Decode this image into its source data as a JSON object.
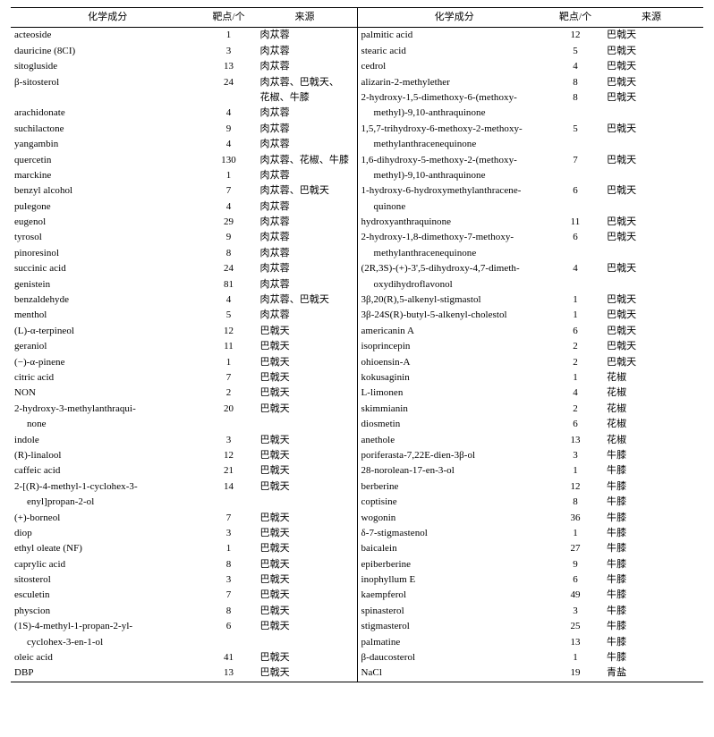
{
  "headers": {
    "compound": "化学成分",
    "targets": "靶点/个",
    "source": "来源"
  },
  "columns_left": [
    {
      "c": "acteoside",
      "t": "1",
      "s": "肉苁蓉"
    },
    {
      "c": "dauricine (8CI)",
      "t": "3",
      "s": "肉苁蓉"
    },
    {
      "c": "sitogluside",
      "t": "13",
      "s": "肉苁蓉"
    },
    {
      "c": "β-sitosterol",
      "t": "24",
      "s": "肉苁蓉、巴戟天、花椒、牛膝",
      "wrap": true
    },
    {
      "c": "arachidonate",
      "t": "4",
      "s": "肉苁蓉"
    },
    {
      "c": "suchilactone",
      "t": "9",
      "s": "肉苁蓉"
    },
    {
      "c": "yangambin",
      "t": "4",
      "s": "肉苁蓉"
    },
    {
      "c": "quercetin",
      "t": "130",
      "s": "肉苁蓉、花椒、牛膝"
    },
    {
      "c": "marckine",
      "t": "1",
      "s": "肉苁蓉"
    },
    {
      "c": "benzyl alcohol",
      "t": "7",
      "s": "肉苁蓉、巴戟天"
    },
    {
      "c": "pulegone",
      "t": "4",
      "s": "肉苁蓉"
    },
    {
      "c": "eugenol",
      "t": "29",
      "s": "肉苁蓉"
    },
    {
      "c": "tyrosol",
      "t": "9",
      "s": "肉苁蓉"
    },
    {
      "c": "pinoresinol",
      "t": "8",
      "s": "肉苁蓉"
    },
    {
      "c": "succinic acid",
      "t": "24",
      "s": "肉苁蓉"
    },
    {
      "c": "genistein",
      "t": "81",
      "s": "肉苁蓉"
    },
    {
      "c": "benzaldehyde",
      "t": "4",
      "s": "肉苁蓉、巴戟天"
    },
    {
      "c": "menthol",
      "t": "5",
      "s": "肉苁蓉"
    },
    {
      "c": "(L)-α-terpineol",
      "t": "12",
      "s": "巴戟天"
    },
    {
      "c": "geraniol",
      "t": "11",
      "s": "巴戟天"
    },
    {
      "c": "(−)-α-pinene",
      "t": "1",
      "s": "巴戟天"
    },
    {
      "c": "citric acid",
      "t": "7",
      "s": "巴戟天"
    },
    {
      "c": "NON",
      "t": "2",
      "s": "巴戟天"
    },
    {
      "c": "2-hydroxy-3-methylanthraquinone",
      "t": "20",
      "s": "巴戟天",
      "cwrap": [
        "2-hydroxy-3-methylanthraqui-",
        "none"
      ]
    },
    {
      "c": "indole",
      "t": "3",
      "s": "巴戟天"
    },
    {
      "c": "(R)-linalool",
      "t": "12",
      "s": "巴戟天"
    },
    {
      "c": "caffeic acid",
      "t": "21",
      "s": "巴戟天"
    },
    {
      "c": "2-[(R)-4-methyl-1-cyclohex-3-enyl]propan-2-ol",
      "t": "14",
      "s": "巴戟天",
      "cwrap": [
        "2-[(R)-4-methyl-1-cyclohex-3-",
        "enyl]propan-2-ol"
      ]
    },
    {
      "c": "(+)-borneol",
      "t": "7",
      "s": "巴戟天"
    },
    {
      "c": "diop",
      "t": "3",
      "s": "巴戟天"
    },
    {
      "c": "ethyl oleate (NF)",
      "t": "1",
      "s": "巴戟天"
    },
    {
      "c": "caprylic acid",
      "t": "8",
      "s": "巴戟天"
    },
    {
      "c": "sitosterol",
      "t": "3",
      "s": "巴戟天"
    },
    {
      "c": "esculetin",
      "t": "7",
      "s": "巴戟天"
    },
    {
      "c": "physcion",
      "t": "8",
      "s": "巴戟天"
    },
    {
      "c": "(1S)-4-methyl-1-propan-2-yl-cyclohex-3-en-1-ol",
      "t": "6",
      "s": "巴戟天",
      "cwrap": [
        "(1S)-4-methyl-1-propan-2-yl-",
        "cyclohex-3-en-1-ol"
      ]
    },
    {
      "c": "oleic acid",
      "t": "41",
      "s": "巴戟天"
    },
    {
      "c": "DBP",
      "t": "13",
      "s": "巴戟天"
    }
  ],
  "columns_right": [
    {
      "c": "palmitic acid",
      "t": "12",
      "s": "巴戟天"
    },
    {
      "c": "stearic acid",
      "t": "5",
      "s": "巴戟天"
    },
    {
      "c": "cedrol",
      "t": "4",
      "s": "巴戟天"
    },
    {
      "c": "alizarin-2-methylether",
      "t": "8",
      "s": "巴戟天"
    },
    {
      "c": "2-hydroxy-1,5-dimethoxy-6-(methoxymethyl)-9,10-anthraquinone",
      "t": "8",
      "s": "巴戟天",
      "cwrap": [
        "2-hydroxy-1,5-dimethoxy-6-(methoxy-",
        "methyl)-9,10-anthraquinone"
      ]
    },
    {
      "c": "1,5,7-trihydroxy-6-methoxy-2-methoxymethylanthracenequinone",
      "t": "5",
      "s": "巴戟天",
      "cwrap": [
        "1,5,7-trihydroxy-6-methoxy-2-methoxy-",
        "methylanthracenequinone"
      ]
    },
    {
      "c": "1,6-dihydroxy-5-methoxy-2-(methoxymethyl)-9,10-anthraquinone",
      "t": "7",
      "s": "巴戟天",
      "cwrap": [
        "1,6-dihydroxy-5-methoxy-2-(methoxy-",
        "methyl)-9,10-anthraquinone"
      ]
    },
    {
      "c": "1-hydroxy-6-hydroxymethylanthracenequinone",
      "t": "6",
      "s": "巴戟天",
      "cwrap": [
        "1-hydroxy-6-hydroxymethylanthracene-",
        "quinone"
      ]
    },
    {
      "c": "hydroxyanthraquinone",
      "t": "11",
      "s": "巴戟天"
    },
    {
      "c": "2-hydroxy-1,8-dimethoxy-7-methoxymethylanthracenequinone",
      "t": "6",
      "s": "巴戟天",
      "cwrap": [
        "2-hydroxy-1,8-dimethoxy-7-methoxy-",
        "methylanthracenequinone"
      ]
    },
    {
      "c": "(2R,3S)-(+)-3',5-dihydroxy-4,7-dimethoxydihydroflavonol",
      "t": "4",
      "s": "巴戟天",
      "cwrap": [
        "(2R,3S)-(+)-3',5-dihydroxy-4,7-dimeth-",
        "oxydihydroflavonol"
      ]
    },
    {
      "c": "3β,20(R),5-alkenyl-stigmastol",
      "t": "1",
      "s": "巴戟天"
    },
    {
      "c": "3β-24S(R)-butyl-5-alkenyl-cholestol",
      "t": "1",
      "s": "巴戟天"
    },
    {
      "c": "americanin A",
      "t": "6",
      "s": "巴戟天"
    },
    {
      "c": "isoprincepin",
      "t": "2",
      "s": "巴戟天"
    },
    {
      "c": "ohioensin-A",
      "t": "2",
      "s": "巴戟天"
    },
    {
      "c": "kokusaginin",
      "t": "1",
      "s": "花椒"
    },
    {
      "c": "L-limonen",
      "t": "4",
      "s": "花椒"
    },
    {
      "c": "skimmianin",
      "t": "2",
      "s": "花椒"
    },
    {
      "c": "diosmetin",
      "t": "6",
      "s": "花椒"
    },
    {
      "c": "anethole",
      "t": "13",
      "s": "花椒"
    },
    {
      "c": "poriferasta-7,22E-dien-3β-ol",
      "t": "3",
      "s": "牛膝"
    },
    {
      "c": "28-norolean-17-en-3-ol",
      "t": "1",
      "s": "牛膝"
    },
    {
      "c": "berberine",
      "t": "12",
      "s": "牛膝"
    },
    {
      "c": "coptisine",
      "t": "8",
      "s": "牛膝"
    },
    {
      "c": "wogonin",
      "t": "36",
      "s": "牛膝"
    },
    {
      "c": "δ-7-stigmastenol",
      "t": "1",
      "s": "牛膝"
    },
    {
      "c": "baicalein",
      "t": "27",
      "s": "牛膝"
    },
    {
      "c": "epiberberine",
      "t": "9",
      "s": "牛膝"
    },
    {
      "c": "inophyllum E",
      "t": "6",
      "s": "牛膝"
    },
    {
      "c": "kaempferol",
      "t": "49",
      "s": "牛膝"
    },
    {
      "c": "spinasterol",
      "t": "3",
      "s": "牛膝"
    },
    {
      "c": "stigmasterol",
      "t": "25",
      "s": "牛膝"
    },
    {
      "c": "palmatine",
      "t": "13",
      "s": "牛膝"
    },
    {
      "c": "β-daucosterol",
      "t": "1",
      "s": "牛膝"
    },
    {
      "c": "NaCl",
      "t": "19",
      "s": "青盐"
    }
  ]
}
